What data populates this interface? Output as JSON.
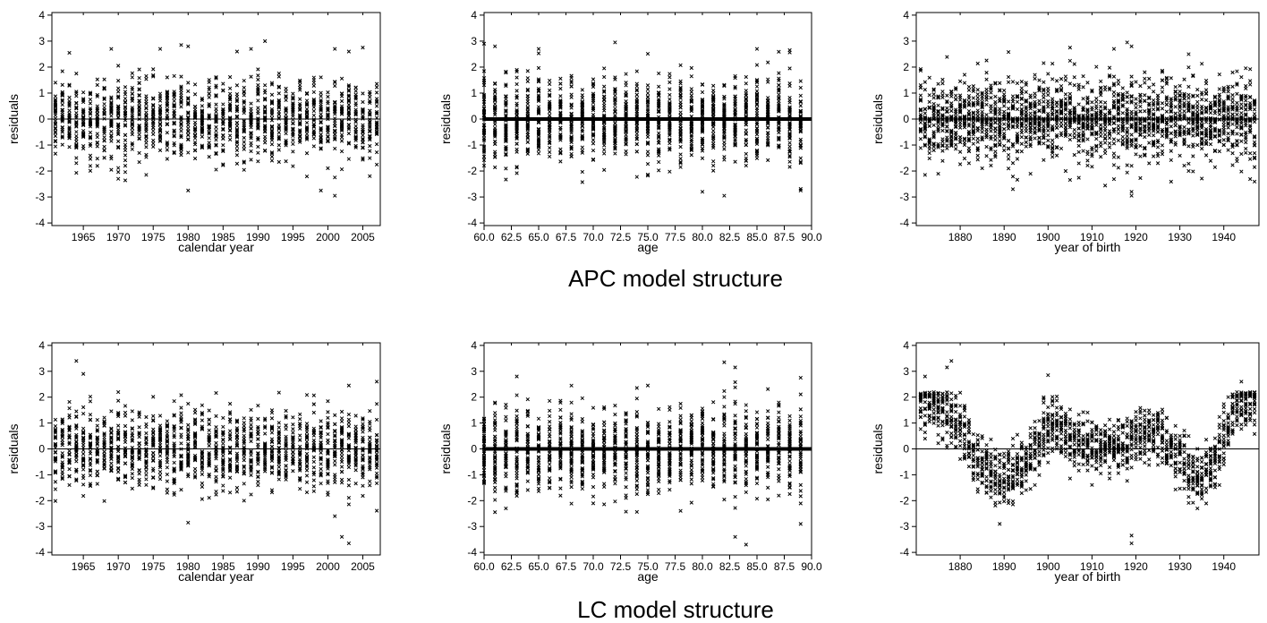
{
  "figure": {
    "captions": [
      "APC model structure",
      "LC model structure"
    ]
  },
  "chart_data": [
    {
      "type": "scatter",
      "group": "APC model structure",
      "group_index": 0,
      "xlabel": "calendar year",
      "ylabel": "residuals",
      "xlim": [
        1960.5,
        2007.5
      ],
      "ylim": [
        -4.1,
        4.1
      ],
      "xticks": [
        1965,
        1970,
        1975,
        1980,
        1985,
        1990,
        1995,
        2000,
        2005
      ],
      "xtick_labels": [
        "1965",
        "1970",
        "1975",
        "1980",
        "1985",
        "1990",
        "1995",
        "2000",
        "2005"
      ],
      "yticks": [
        -4,
        -3,
        -2,
        -1,
        0,
        1,
        2,
        3,
        4
      ],
      "ytick_labels": [
        "-4",
        "-3",
        "-2",
        "-1",
        "0",
        "1",
        "2",
        "3",
        "4"
      ],
      "grid": false,
      "marker": "x",
      "zero_line_width": 1,
      "series": [
        {
          "x_range": [
            1961,
            2007
          ],
          "x_step": 1,
          "points_per_x": 30,
          "spread": 0.75,
          "clip": 3.0,
          "zero_points": 0,
          "outliers": [
            {
              "x": 1963,
              "y": 2.55
            },
            {
              "x": 1969,
              "y": 2.7
            },
            {
              "x": 1970,
              "y": -2.3
            },
            {
              "x": 1976,
              "y": 2.7
            },
            {
              "x": 1979,
              "y": 2.85
            },
            {
              "x": 1980,
              "y": -2.75
            },
            {
              "x": 1980,
              "y": 2.8
            },
            {
              "x": 1987,
              "y": 2.6
            },
            {
              "x": 1989,
              "y": 2.7
            },
            {
              "x": 1991,
              "y": 3.0
            },
            {
              "x": 1999,
              "y": -2.75
            },
            {
              "x": 2001,
              "y": -2.95
            },
            {
              "x": 2001,
              "y": 2.7
            },
            {
              "x": 2003,
              "y": 2.6
            },
            {
              "x": 2005,
              "y": 2.75
            }
          ]
        }
      ]
    },
    {
      "type": "scatter",
      "group": "APC model structure",
      "group_index": 1,
      "xlabel": "age",
      "ylabel": "residuals",
      "xlim": [
        60,
        90
      ],
      "ylim": [
        -4.1,
        4.1
      ],
      "xticks": [
        60,
        62.5,
        65,
        67.5,
        70,
        72.5,
        75,
        77.5,
        80,
        82.5,
        85,
        87.5,
        90
      ],
      "xtick_labels": [
        "60.0",
        "62.5",
        "65.0",
        "67.5",
        "70.0",
        "72.5",
        "75.0",
        "77.5",
        "80.0",
        "82.5",
        "85.0",
        "87.5",
        "90.0"
      ],
      "yticks": [
        -4,
        -3,
        -2,
        -1,
        0,
        1,
        2,
        3,
        4
      ],
      "ytick_labels": [
        "-4",
        "-3",
        "-2",
        "-1",
        "0",
        "1",
        "2",
        "3",
        "4"
      ],
      "grid": false,
      "marker": "x",
      "zero_line_width": 4,
      "series": [
        {
          "x_range": [
            60,
            89
          ],
          "x_step": 1,
          "points_per_x": 45,
          "spread": 0.8,
          "clip": 2.8,
          "zero_points": 0,
          "outliers": [
            {
              "x": 60,
              "y": 2.9
            },
            {
              "x": 61,
              "y": 2.8
            },
            {
              "x": 65,
              "y": 2.7
            },
            {
              "x": 72,
              "y": 2.95
            },
            {
              "x": 80,
              "y": -2.8
            },
            {
              "x": 82,
              "y": -2.95
            },
            {
              "x": 85,
              "y": 2.7
            },
            {
              "x": 88,
              "y": 2.65
            },
            {
              "x": 89,
              "y": -2.75
            }
          ]
        }
      ]
    },
    {
      "type": "scatter",
      "group": "APC model structure",
      "group_index": 2,
      "xlabel": "year of birth",
      "ylabel": "residuals",
      "xlim": [
        1870,
        1948
      ],
      "ylim": [
        -4.1,
        4.1
      ],
      "xticks": [
        1880,
        1890,
        1900,
        1910,
        1920,
        1930,
        1940
      ],
      "xtick_labels": [
        "1880",
        "1890",
        "1900",
        "1910",
        "1920",
        "1930",
        "1940"
      ],
      "yticks": [
        -4,
        -3,
        -2,
        -1,
        0,
        1,
        2,
        3,
        4
      ],
      "ytick_labels": [
        "-4",
        "-3",
        "-2",
        "-1",
        "0",
        "1",
        "2",
        "3",
        "4"
      ],
      "grid": false,
      "marker": "x",
      "zero_line_width": 1,
      "series": [
        {
          "x_range": [
            1871,
            1947
          ],
          "x_step": 1,
          "points_per_x": 24,
          "spread": 0.8,
          "clip": 2.6,
          "zero_points": 4,
          "outliers": [
            {
              "x": 1918,
              "y": 2.95
            },
            {
              "x": 1919,
              "y": 2.8
            },
            {
              "x": 1919,
              "y": -2.8
            },
            {
              "x": 1919,
              "y": -2.95
            },
            {
              "x": 1892,
              "y": -2.7
            },
            {
              "x": 1905,
              "y": 2.75
            },
            {
              "x": 1915,
              "y": 2.7
            }
          ]
        }
      ]
    },
    {
      "type": "scatter",
      "group": "LC model structure",
      "group_index": 0,
      "xlabel": "calendar year",
      "ylabel": "residuals",
      "xlim": [
        1960.5,
        2007.5
      ],
      "ylim": [
        -4.1,
        4.1
      ],
      "xticks": [
        1965,
        1970,
        1975,
        1980,
        1985,
        1990,
        1995,
        2000,
        2005
      ],
      "xtick_labels": [
        "1965",
        "1970",
        "1975",
        "1980",
        "1985",
        "1990",
        "1995",
        "2000",
        "2005"
      ],
      "yticks": [
        -4,
        -3,
        -2,
        -1,
        0,
        1,
        2,
        3,
        4
      ],
      "ytick_labels": [
        "-4",
        "-3",
        "-2",
        "-1",
        "0",
        "1",
        "2",
        "3",
        "4"
      ],
      "grid": false,
      "marker": "x",
      "zero_line_width": 1,
      "series": [
        {
          "x_range": [
            1961,
            2007
          ],
          "x_step": 1,
          "points_per_x": 30,
          "spread": 0.75,
          "clip": 2.6,
          "zero_points": 0,
          "outliers": [
            {
              "x": 1964,
              "y": 3.4
            },
            {
              "x": 1965,
              "y": 2.9
            },
            {
              "x": 1980,
              "y": -2.85
            },
            {
              "x": 2001,
              "y": -2.6
            },
            {
              "x": 2002,
              "y": -3.4
            },
            {
              "x": 2003,
              "y": -3.65
            },
            {
              "x": 2003,
              "y": 2.45
            },
            {
              "x": 2007,
              "y": 2.6
            }
          ]
        }
      ]
    },
    {
      "type": "scatter",
      "group": "LC model structure",
      "group_index": 1,
      "xlabel": "age",
      "ylabel": "residuals",
      "xlim": [
        60,
        90
      ],
      "ylim": [
        -4.1,
        4.1
      ],
      "xticks": [
        60,
        62.5,
        65,
        67.5,
        70,
        72.5,
        75,
        77.5,
        80,
        82.5,
        85,
        87.5,
        90
      ],
      "xtick_labels": [
        "60.0",
        "62.5",
        "65.0",
        "67.5",
        "70.0",
        "72.5",
        "75.0",
        "77.5",
        "80.0",
        "82.5",
        "85.0",
        "87.5",
        "90.0"
      ],
      "yticks": [
        -4,
        -3,
        -2,
        -1,
        0,
        1,
        2,
        3,
        4
      ],
      "ytick_labels": [
        "-4",
        "-3",
        "-2",
        "-1",
        "0",
        "1",
        "2",
        "3",
        "4"
      ],
      "grid": false,
      "marker": "x",
      "zero_line_width": 4,
      "series": [
        {
          "x_range": [
            60,
            89
          ],
          "x_step": 1,
          "points_per_x": 45,
          "spread": 0.8,
          "clip": 2.6,
          "zero_points": 0,
          "outliers": [
            {
              "x": 62,
              "y": -2.3
            },
            {
              "x": 63,
              "y": 2.8
            },
            {
              "x": 75,
              "y": 2.45
            },
            {
              "x": 82,
              "y": 3.35
            },
            {
              "x": 83,
              "y": 3.15
            },
            {
              "x": 83,
              "y": -3.4
            },
            {
              "x": 84,
              "y": -3.7
            },
            {
              "x": 89,
              "y": 2.75
            },
            {
              "x": 89,
              "y": -2.9
            }
          ]
        }
      ]
    },
    {
      "type": "scatter",
      "group": "LC model structure",
      "group_index": 2,
      "xlabel": "year of birth",
      "ylabel": "residuals",
      "xlim": [
        1870,
        1948
      ],
      "ylim": [
        -4.1,
        4.1
      ],
      "xticks": [
        1880,
        1890,
        1900,
        1910,
        1920,
        1930,
        1940
      ],
      "xtick_labels": [
        "1880",
        "1890",
        "1900",
        "1910",
        "1920",
        "1930",
        "1940"
      ],
      "yticks": [
        -4,
        -3,
        -2,
        -1,
        0,
        1,
        2,
        3,
        4
      ],
      "ytick_labels": [
        "-4",
        "-3",
        "-2",
        "-1",
        "0",
        "1",
        "2",
        "3",
        "4"
      ],
      "grid": false,
      "marker": "x",
      "zero_line_width": 1,
      "series": [
        {
          "x_range": [
            1871,
            1947
          ],
          "x_step": 1,
          "points_per_x": 20,
          "spread": 0.55,
          "clip": 2.2,
          "zero_points": 0,
          "trend": [
            [
              1871,
              1.9
            ],
            [
              1876,
              1.6
            ],
            [
              1880,
              1.0
            ],
            [
              1883,
              -0.2
            ],
            [
              1886,
              -0.8
            ],
            [
              1890,
              -1.1
            ],
            [
              1895,
              -0.7
            ],
            [
              1898,
              0.2
            ],
            [
              1901,
              1.0
            ],
            [
              1904,
              0.6
            ],
            [
              1908,
              0.2
            ],
            [
              1912,
              0.0
            ],
            [
              1916,
              0.3
            ],
            [
              1918,
              0.2
            ],
            [
              1921,
              0.5
            ],
            [
              1925,
              0.6
            ],
            [
              1928,
              0.0
            ],
            [
              1931,
              -0.8
            ],
            [
              1934,
              -1.1
            ],
            [
              1937,
              -0.9
            ],
            [
              1940,
              0.4
            ],
            [
              1943,
              1.8
            ],
            [
              1947,
              2.0
            ]
          ],
          "outliers": [
            {
              "x": 1878,
              "y": 3.4
            },
            {
              "x": 1877,
              "y": 3.15
            },
            {
              "x": 1872,
              "y": 2.8
            },
            {
              "x": 1900,
              "y": 2.85
            },
            {
              "x": 1919,
              "y": -3.35
            },
            {
              "x": 1919,
              "y": -3.65
            },
            {
              "x": 1944,
              "y": 2.6
            },
            {
              "x": 1889,
              "y": -2.9
            },
            {
              "x": 1934,
              "y": -2.3
            }
          ]
        }
      ]
    }
  ]
}
